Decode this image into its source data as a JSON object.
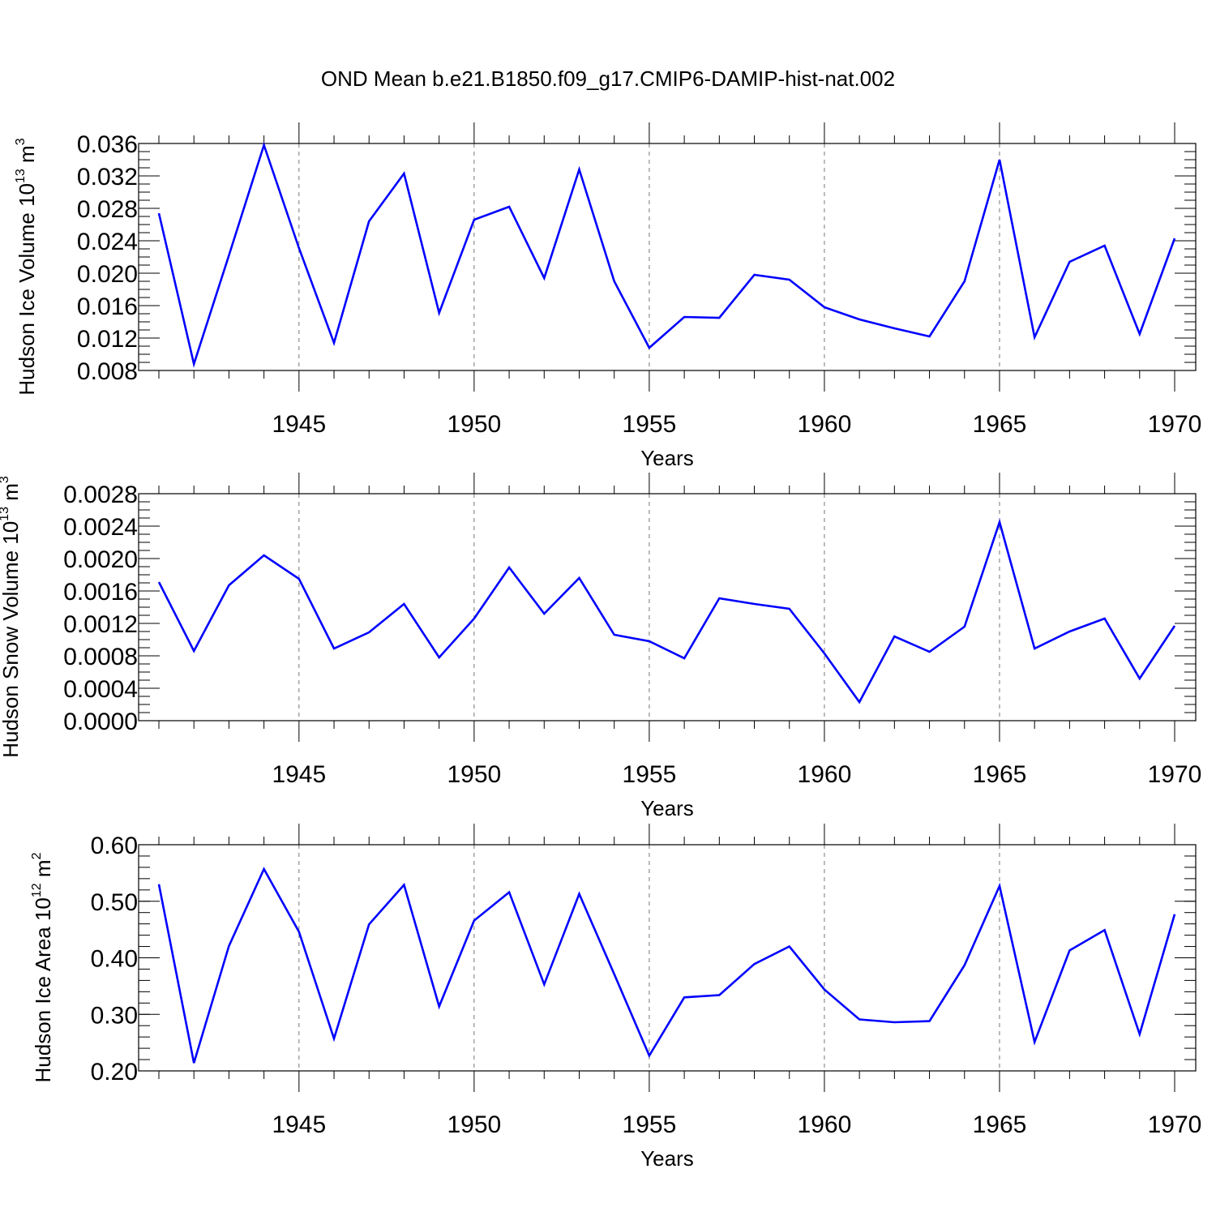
{
  "title": "OND Mean b.e21.B1850.f09_g17.CMIP6-DAMIP-hist-nat.002",
  "chart_data": [
    {
      "type": "line",
      "xlabel": "Years",
      "ylabel": "Hudson Ice Volume",
      "yunit_base": "10",
      "yunit_exp": "13",
      "yunit_name": "m",
      "yunit_name_exp": "3",
      "xlim": [
        1941,
        1970
      ],
      "ylim": [
        0.008,
        0.036
      ],
      "xticks": [
        1945,
        1950,
        1955,
        1960,
        1965,
        1970
      ],
      "xtick_labels": [
        "1945",
        "1950",
        "1955",
        "1960",
        "1965",
        "1970"
      ],
      "yticks": [
        0.008,
        0.012,
        0.016,
        0.02,
        0.024,
        0.028,
        0.032,
        0.036
      ],
      "ytick_labels": [
        "0.008",
        "0.012",
        "0.016",
        "0.020",
        "0.024",
        "0.028",
        "0.032",
        "0.036"
      ],
      "yminor_step": 0.001,
      "grid": "vertical dashed at major x ticks",
      "color": "#0000ff",
      "x": [
        1941,
        1942,
        1943,
        1944,
        1945,
        1946,
        1947,
        1948,
        1949,
        1950,
        1951,
        1952,
        1953,
        1954,
        1955,
        1956,
        1957,
        1958,
        1959,
        1960,
        1961,
        1962,
        1963,
        1964,
        1965,
        1966,
        1967,
        1968,
        1969,
        1970
      ],
      "values": [
        0.0274,
        0.0088,
        0.0222,
        0.0358,
        0.0231,
        0.0114,
        0.0264,
        0.0323,
        0.0151,
        0.0266,
        0.0282,
        0.0194,
        0.0328,
        0.019,
        0.0108,
        0.0146,
        0.0145,
        0.0198,
        0.0192,
        0.0158,
        0.0143,
        0.0132,
        0.0122,
        0.019,
        0.034,
        0.0121,
        0.0214,
        0.0234,
        0.0125,
        0.0243
      ]
    },
    {
      "type": "line",
      "xlabel": "Years",
      "ylabel": "Hudson Snow Volume",
      "yunit_base": "10",
      "yunit_exp": "13",
      "yunit_name": "m",
      "yunit_name_exp": "3",
      "xlim": [
        1941,
        1970
      ],
      "ylim": [
        0.0,
        0.0028
      ],
      "xticks": [
        1945,
        1950,
        1955,
        1960,
        1965,
        1970
      ],
      "xtick_labels": [
        "1945",
        "1950",
        "1955",
        "1960",
        "1965",
        "1970"
      ],
      "yticks": [
        0.0,
        0.0004,
        0.0008,
        0.0012,
        0.0016,
        0.002,
        0.0024,
        0.0028
      ],
      "ytick_labels": [
        "0.0000",
        "0.0004",
        "0.0008",
        "0.0012",
        "0.0016",
        "0.0020",
        "0.0024",
        "0.0028"
      ],
      "yminor_step": 0.0001,
      "grid": "vertical dashed at major x ticks",
      "color": "#0000ff",
      "x": [
        1941,
        1942,
        1943,
        1944,
        1945,
        1946,
        1947,
        1948,
        1949,
        1950,
        1951,
        1952,
        1953,
        1954,
        1955,
        1956,
        1957,
        1958,
        1959,
        1960,
        1961,
        1962,
        1963,
        1964,
        1965,
        1966,
        1967,
        1968,
        1969,
        1970
      ],
      "values": [
        0.00171,
        0.00086,
        0.00167,
        0.00204,
        0.00175,
        0.00089,
        0.00109,
        0.00144,
        0.00078,
        0.00126,
        0.00189,
        0.00132,
        0.00176,
        0.00106,
        0.00098,
        0.00077,
        0.00151,
        0.00144,
        0.00138,
        0.00083,
        0.00023,
        0.00104,
        0.00085,
        0.00116,
        0.00245,
        0.00089,
        0.0011,
        0.00126,
        0.00052,
        0.00117
      ]
    },
    {
      "type": "line",
      "xlabel": "Years",
      "ylabel": "Hudson Ice Area",
      "yunit_base": "10",
      "yunit_exp": "12",
      "yunit_name": "m",
      "yunit_name_exp": "2",
      "xlim": [
        1941,
        1970
      ],
      "ylim": [
        0.2,
        0.6
      ],
      "xticks": [
        1945,
        1950,
        1955,
        1960,
        1965,
        1970
      ],
      "xtick_labels": [
        "1945",
        "1950",
        "1955",
        "1960",
        "1965",
        "1970"
      ],
      "yticks": [
        0.2,
        0.3,
        0.4,
        0.5,
        0.6
      ],
      "ytick_labels": [
        "0.20",
        "0.30",
        "0.40",
        "0.50",
        "0.60"
      ],
      "yminor_step": 0.02,
      "grid": "vertical dashed at major x ticks",
      "color": "#0000ff",
      "x": [
        1941,
        1942,
        1943,
        1944,
        1945,
        1946,
        1947,
        1948,
        1949,
        1950,
        1951,
        1952,
        1953,
        1954,
        1955,
        1956,
        1957,
        1958,
        1959,
        1960,
        1961,
        1962,
        1963,
        1964,
        1965,
        1966,
        1967,
        1968,
        1969,
        1970
      ],
      "values": [
        0.53,
        0.214,
        0.421,
        0.557,
        0.446,
        0.257,
        0.459,
        0.529,
        0.314,
        0.466,
        0.516,
        0.353,
        0.513,
        0.371,
        0.227,
        0.33,
        0.334,
        0.389,
        0.42,
        0.344,
        0.291,
        0.286,
        0.288,
        0.387,
        0.527,
        0.251,
        0.413,
        0.449,
        0.265,
        0.477
      ]
    }
  ]
}
